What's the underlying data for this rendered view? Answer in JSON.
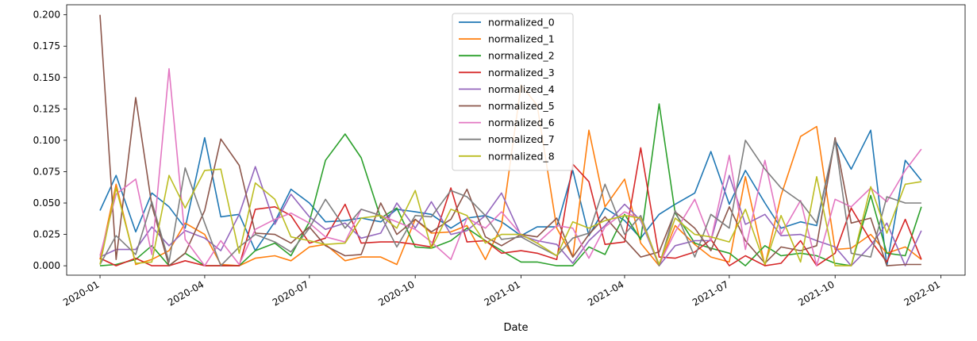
{
  "chart_data": {
    "type": "line",
    "title": "",
    "xlabel": "Date",
    "ylabel": "",
    "x_axis_type": "date",
    "xlim": [
      "2019-12-03",
      "2022-01-22"
    ],
    "ylim": [
      -0.0075,
      0.208
    ],
    "grid": false,
    "legend_position": "top-center",
    "x_ticks": [
      {
        "date": "2020-01-01",
        "label": "2020-01"
      },
      {
        "date": "2020-04-01",
        "label": "2020-04"
      },
      {
        "date": "2020-07-01",
        "label": "2020-07"
      },
      {
        "date": "2020-10-01",
        "label": "2020-10"
      },
      {
        "date": "2021-01-01",
        "label": "2021-01"
      },
      {
        "date": "2021-04-01",
        "label": "2021-04"
      },
      {
        "date": "2021-07-01",
        "label": "2021-07"
      },
      {
        "date": "2021-10-01",
        "label": "2021-10"
      },
      {
        "date": "2022-01-01",
        "label": "2022-01"
      }
    ],
    "y_ticks": [
      "0.000",
      "0.025",
      "0.050",
      "0.075",
      "0.100",
      "0.125",
      "0.150",
      "0.175",
      "0.200"
    ],
    "x": [
      "2020-01-01",
      "2020-01-15",
      "2020-02-01",
      "2020-02-15",
      "2020-03-01",
      "2020-03-15",
      "2020-04-01",
      "2020-04-15",
      "2020-05-01",
      "2020-05-15",
      "2020-06-01",
      "2020-06-15",
      "2020-07-01",
      "2020-07-15",
      "2020-08-01",
      "2020-08-15",
      "2020-09-01",
      "2020-09-15",
      "2020-10-01",
      "2020-10-15",
      "2020-11-01",
      "2020-11-15",
      "2020-12-01",
      "2020-12-15",
      "2021-01-01",
      "2021-01-15",
      "2021-02-01",
      "2021-02-15",
      "2021-03-01",
      "2021-03-15",
      "2021-04-01",
      "2021-04-15",
      "2021-05-01",
      "2021-05-15",
      "2021-06-01",
      "2021-06-15",
      "2021-07-01",
      "2021-07-15",
      "2021-08-01",
      "2021-08-15",
      "2021-09-01",
      "2021-09-15",
      "2021-10-01",
      "2021-10-15",
      "2021-11-01",
      "2021-11-15",
      "2021-12-01",
      "2021-12-15"
    ],
    "series": [
      {
        "name": "normalized_0",
        "color": "#1f77b4",
        "values": [
          0.044,
          0.072,
          0.027,
          0.058,
          0.047,
          0.03,
          0.102,
          0.039,
          0.041,
          0.012,
          0.035,
          0.061,
          0.05,
          0.035,
          0.036,
          0.038,
          0.035,
          0.045,
          0.043,
          0.041,
          0.03,
          0.038,
          0.04,
          0.035,
          0.024,
          0.031,
          0.031,
          0.076,
          0.024,
          0.046,
          0.036,
          0.022,
          0.041,
          0.049,
          0.058,
          0.091,
          0.049,
          0.076,
          0.05,
          0.03,
          0.035,
          0.032,
          0.1,
          0.077,
          0.108,
          0.0,
          0.084,
          0.068
        ]
      },
      {
        "name": "normalized_1",
        "color": "#ff7f0e",
        "values": [
          0.005,
          0.065,
          0.001,
          0.005,
          0.012,
          0.034,
          0.025,
          0.001,
          0.0,
          0.006,
          0.008,
          0.004,
          0.015,
          0.017,
          0.004,
          0.007,
          0.007,
          0.001,
          0.037,
          0.026,
          0.027,
          0.032,
          0.005,
          0.032,
          0.144,
          0.128,
          0.03,
          0.007,
          0.108,
          0.047,
          0.069,
          0.018,
          0.0,
          0.032,
          0.017,
          0.007,
          0.003,
          0.071,
          0.0,
          0.056,
          0.103,
          0.111,
          0.013,
          0.014,
          0.025,
          0.01,
          0.015,
          0.005
        ]
      },
      {
        "name": "normalized_2",
        "color": "#2ca02c",
        "values": [
          0.0,
          0.001,
          0.005,
          0.016,
          0.0,
          0.01,
          0.0,
          0.0,
          0.0,
          0.012,
          0.018,
          0.008,
          0.035,
          0.084,
          0.105,
          0.086,
          0.038,
          0.046,
          0.015,
          0.014,
          0.02,
          0.03,
          0.02,
          0.012,
          0.003,
          0.003,
          0.0,
          0.0,
          0.015,
          0.009,
          0.041,
          0.021,
          0.129,
          0.042,
          0.018,
          0.014,
          0.01,
          0.0,
          0.016,
          0.008,
          0.01,
          0.008,
          0.002,
          0.0,
          0.056,
          0.01,
          0.008,
          0.047
        ]
      },
      {
        "name": "normalized_3",
        "color": "#d62728",
        "values": [
          0.006,
          0.0,
          0.006,
          0.0,
          0.0,
          0.004,
          0.0,
          0.0,
          0.0,
          0.045,
          0.047,
          0.04,
          0.018,
          0.022,
          0.049,
          0.018,
          0.019,
          0.019,
          0.017,
          0.015,
          0.062,
          0.019,
          0.02,
          0.01,
          0.012,
          0.01,
          0.005,
          0.081,
          0.067,
          0.017,
          0.019,
          0.094,
          0.007,
          0.006,
          0.011,
          0.021,
          0.0,
          0.008,
          0.0,
          0.002,
          0.02,
          0.0,
          0.01,
          0.046,
          0.02,
          0.003,
          0.037,
          0.005
        ]
      },
      {
        "name": "normalized_4",
        "color": "#9467bd",
        "values": [
          0.007,
          0.013,
          0.013,
          0.031,
          0.016,
          0.028,
          0.022,
          0.012,
          0.041,
          0.079,
          0.033,
          0.057,
          0.039,
          0.029,
          0.034,
          0.022,
          0.026,
          0.05,
          0.03,
          0.051,
          0.025,
          0.028,
          0.04,
          0.058,
          0.024,
          0.02,
          0.017,
          0.002,
          0.02,
          0.032,
          0.049,
          0.036,
          0.0,
          0.016,
          0.02,
          0.02,
          0.072,
          0.033,
          0.041,
          0.024,
          0.025,
          0.02,
          0.015,
          0.0,
          0.016,
          0.034,
          0.0,
          0.028
        ]
      },
      {
        "name": "normalized_5",
        "color": "#8c564b",
        "values": [
          0.2,
          0.005,
          0.134,
          0.048,
          0.0,
          0.01,
          0.044,
          0.101,
          0.08,
          0.026,
          0.025,
          0.018,
          0.031,
          0.016,
          0.008,
          0.009,
          0.05,
          0.025,
          0.037,
          0.027,
          0.037,
          0.061,
          0.023,
          0.016,
          0.025,
          0.023,
          0.038,
          0.007,
          0.025,
          0.039,
          0.021,
          0.007,
          0.011,
          0.043,
          0.03,
          0.012,
          0.047,
          0.02,
          0.002,
          0.015,
          0.012,
          0.016,
          0.102,
          0.034,
          0.038,
          0.0,
          0.001,
          0.001
        ]
      },
      {
        "name": "normalized_6",
        "color": "#e377c2",
        "values": [
          0.008,
          0.057,
          0.069,
          0.009,
          0.157,
          0.021,
          0.0,
          0.02,
          0.001,
          0.029,
          0.037,
          0.042,
          0.034,
          0.023,
          0.019,
          0.045,
          0.04,
          0.035,
          0.029,
          0.019,
          0.005,
          0.038,
          0.03,
          0.043,
          0.025,
          0.018,
          0.032,
          0.03,
          0.006,
          0.031,
          0.043,
          0.037,
          0.001,
          0.027,
          0.053,
          0.02,
          0.088,
          0.013,
          0.084,
          0.025,
          0.052,
          0.0,
          0.053,
          0.047,
          0.062,
          0.051,
          0.076,
          0.093
        ]
      },
      {
        "name": "normalized_7",
        "color": "#7f7f7f",
        "values": [
          0.001,
          0.024,
          0.009,
          0.051,
          0.003,
          0.078,
          0.034,
          0.0,
          0.015,
          0.025,
          0.019,
          0.011,
          0.03,
          0.053,
          0.03,
          0.045,
          0.04,
          0.015,
          0.04,
          0.039,
          0.06,
          0.055,
          0.04,
          0.021,
          0.023,
          0.016,
          0.008,
          0.022,
          0.026,
          0.065,
          0.025,
          0.04,
          0.0,
          0.044,
          0.007,
          0.041,
          0.03,
          0.1,
          0.077,
          0.062,
          0.051,
          0.034,
          0.1,
          0.01,
          0.007,
          0.055,
          0.05,
          0.05
        ]
      },
      {
        "name": "normalized_8",
        "color": "#bcbd22",
        "values": [
          0.001,
          0.062,
          0.002,
          0.003,
          0.072,
          0.046,
          0.076,
          0.077,
          0.01,
          0.066,
          0.053,
          0.023,
          0.02,
          0.017,
          0.018,
          0.038,
          0.04,
          0.03,
          0.06,
          0.014,
          0.045,
          0.04,
          0.018,
          0.025,
          0.025,
          0.018,
          0.008,
          0.035,
          0.03,
          0.036,
          0.04,
          0.038,
          0.001,
          0.038,
          0.025,
          0.023,
          0.019,
          0.045,
          0.001,
          0.04,
          0.003,
          0.071,
          0.0,
          0.0,
          0.063,
          0.026,
          0.065,
          0.067
        ]
      }
    ]
  }
}
